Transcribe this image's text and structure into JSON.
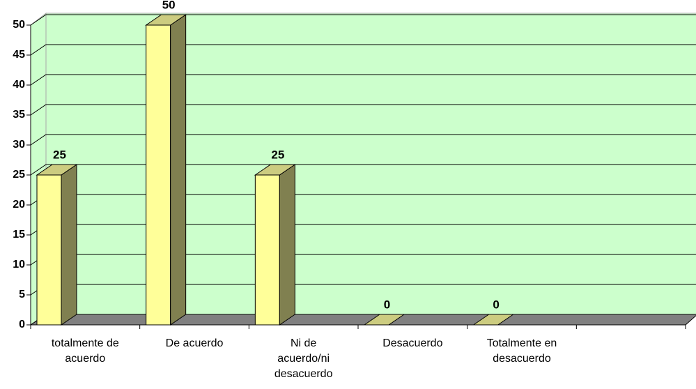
{
  "chart_data": {
    "type": "bar",
    "categories": [
      "totalmente de acuerdo",
      "De acuerdo",
      "Ni de acuerdo/ni desacuerdo",
      "Desacuerdo",
      "Totalmente en desacuerdo",
      null
    ],
    "values": [
      25,
      50,
      25,
      0,
      0,
      null
    ],
    "color": "#ffff99",
    "ylim": [
      0,
      50
    ],
    "yticks": [
      0,
      5,
      10,
      15,
      20,
      25,
      30,
      35,
      40,
      45,
      50
    ],
    "grid": true
  }
}
